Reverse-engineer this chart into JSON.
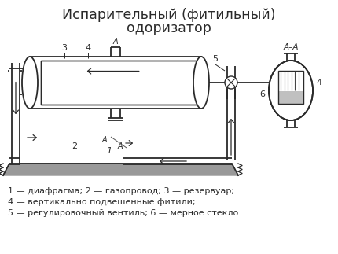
{
  "title_line1": "Испарительный (фитильный)",
  "title_line2": "одоризатор",
  "bg_color": "#ffffff",
  "line_color": "#2a2a2a",
  "legend_line1": "1 — диафрагма; 2 — газопровод; 3 — резервуар;",
  "legend_line2": "4 — вертикально подвешенные фитили;",
  "legend_line3": "5 — регулировочный вентиль; 6 — мерное стекло",
  "title_fontsize": 12.5,
  "legend_fontsize": 8.0
}
